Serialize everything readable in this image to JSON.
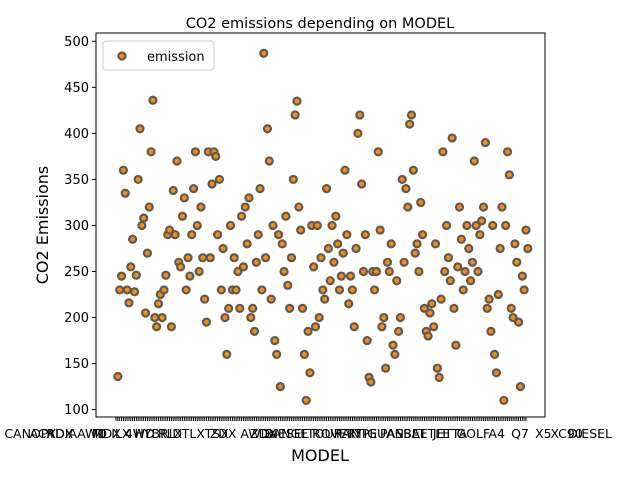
{
  "chart_data": {
    "type": "scatter",
    "title": "CO2 emissions depending on MODEL",
    "xlabel": "MODEL",
    "ylabel": "CO2 Emissions",
    "ylim": [
      92,
      509
    ],
    "yticks": [
      100,
      150,
      200,
      250,
      300,
      350,
      400,
      450,
      500
    ],
    "grid": false,
    "legend_position": "upper-left",
    "series": [
      {
        "name": "emission",
        "marker_face": "#ff8c00",
        "marker_edge": "#5a5a5a",
        "points": [
          [
            2,
            136
          ],
          [
            3,
            230
          ],
          [
            4,
            245
          ],
          [
            5,
            360
          ],
          [
            6,
            335
          ],
          [
            7,
            230
          ],
          [
            8,
            216
          ],
          [
            9,
            255
          ],
          [
            10,
            285
          ],
          [
            11,
            228
          ],
          [
            12,
            246
          ],
          [
            13,
            350
          ],
          [
            14,
            405
          ],
          [
            15,
            300
          ],
          [
            16,
            308
          ],
          [
            17,
            205
          ],
          [
            18,
            270
          ],
          [
            19,
            320
          ],
          [
            20,
            380
          ],
          [
            21,
            436
          ],
          [
            22,
            200
          ],
          [
            23,
            190
          ],
          [
            24,
            215
          ],
          [
            25,
            225
          ],
          [
            26,
            200
          ],
          [
            27,
            230
          ],
          [
            28,
            246
          ],
          [
            29,
            290
          ],
          [
            30,
            295
          ],
          [
            31,
            190
          ],
          [
            32,
            338
          ],
          [
            33,
            290
          ],
          [
            34,
            370
          ],
          [
            35,
            260
          ],
          [
            36,
            255
          ],
          [
            37,
            310
          ],
          [
            38,
            330
          ],
          [
            39,
            230
          ],
          [
            40,
            265
          ],
          [
            41,
            245
          ],
          [
            42,
            290
          ],
          [
            43,
            340
          ],
          [
            44,
            380
          ],
          [
            45,
            300
          ],
          [
            46,
            250
          ],
          [
            47,
            320
          ],
          [
            48,
            265
          ],
          [
            49,
            220
          ],
          [
            50,
            195
          ],
          [
            51,
            380
          ],
          [
            52,
            265
          ],
          [
            53,
            345
          ],
          [
            54,
            380
          ],
          [
            55,
            375
          ],
          [
            56,
            290
          ],
          [
            57,
            350
          ],
          [
            58,
            230
          ],
          [
            59,
            275
          ],
          [
            60,
            200
          ],
          [
            61,
            160
          ],
          [
            62,
            210
          ],
          [
            63,
            300
          ],
          [
            64,
            230
          ],
          [
            65,
            265
          ],
          [
            66,
            230
          ],
          [
            67,
            250
          ],
          [
            68,
            210
          ],
          [
            69,
            310
          ],
          [
            70,
            255
          ],
          [
            71,
            320
          ],
          [
            72,
            280
          ],
          [
            73,
            330
          ],
          [
            74,
            200
          ],
          [
            75,
            210
          ],
          [
            76,
            185
          ],
          [
            77,
            260
          ],
          [
            78,
            290
          ],
          [
            79,
            340
          ],
          [
            80,
            230
          ],
          [
            81,
            487
          ],
          [
            82,
            265
          ],
          [
            83,
            405
          ],
          [
            84,
            370
          ],
          [
            85,
            220
          ],
          [
            86,
            300
          ],
          [
            87,
            175
          ],
          [
            88,
            160
          ],
          [
            89,
            290
          ],
          [
            90,
            125
          ],
          [
            91,
            280
          ],
          [
            92,
            250
          ],
          [
            93,
            310
          ],
          [
            94,
            235
          ],
          [
            95,
            210
          ],
          [
            96,
            265
          ],
          [
            97,
            350
          ],
          [
            98,
            420
          ],
          [
            99,
            435
          ],
          [
            100,
            320
          ],
          [
            101,
            295
          ],
          [
            102,
            210
          ],
          [
            103,
            160
          ],
          [
            104,
            110
          ],
          [
            105,
            185
          ],
          [
            106,
            140
          ],
          [
            107,
            300
          ],
          [
            108,
            255
          ],
          [
            109,
            190
          ],
          [
            110,
            300
          ],
          [
            111,
            200
          ],
          [
            112,
            265
          ],
          [
            113,
            230
          ],
          [
            114,
            220
          ],
          [
            115,
            340
          ],
          [
            116,
            275
          ],
          [
            117,
            240
          ],
          [
            118,
            300
          ],
          [
            119,
            260
          ],
          [
            120,
            310
          ],
          [
            121,
            280
          ],
          [
            122,
            230
          ],
          [
            123,
            245
          ],
          [
            124,
            270
          ],
          [
            125,
            360
          ],
          [
            126,
            290
          ],
          [
            127,
            215
          ],
          [
            128,
            245
          ],
          [
            129,
            230
          ],
          [
            130,
            190
          ],
          [
            131,
            275
          ],
          [
            132,
            400
          ],
          [
            133,
            420
          ],
          [
            134,
            345
          ],
          [
            135,
            250
          ],
          [
            136,
            290
          ],
          [
            137,
            175
          ],
          [
            138,
            135
          ],
          [
            139,
            130
          ],
          [
            140,
            250
          ],
          [
            141,
            230
          ],
          [
            142,
            250
          ],
          [
            143,
            380
          ],
          [
            144,
            295
          ],
          [
            145,
            190
          ],
          [
            146,
            200
          ],
          [
            147,
            145
          ],
          [
            148,
            260
          ],
          [
            149,
            250
          ],
          [
            150,
            280
          ],
          [
            151,
            170
          ],
          [
            152,
            160
          ],
          [
            153,
            240
          ],
          [
            154,
            185
          ],
          [
            155,
            200
          ],
          [
            156,
            350
          ],
          [
            157,
            260
          ],
          [
            158,
            340
          ],
          [
            159,
            320
          ],
          [
            160,
            410
          ],
          [
            161,
            420
          ],
          [
            162,
            360
          ],
          [
            163,
            270
          ],
          [
            164,
            280
          ],
          [
            165,
            250
          ],
          [
            166,
            325
          ],
          [
            167,
            290
          ],
          [
            168,
            210
          ],
          [
            169,
            185
          ],
          [
            170,
            180
          ],
          [
            171,
            205
          ],
          [
            172,
            215
          ],
          [
            173,
            190
          ],
          [
            174,
            280
          ],
          [
            175,
            145
          ],
          [
            176,
            135
          ],
          [
            177,
            220
          ],
          [
            178,
            380
          ],
          [
            179,
            250
          ],
          [
            180,
            300
          ],
          [
            181,
            265
          ],
          [
            182,
            240
          ],
          [
            183,
            395
          ],
          [
            184,
            210
          ],
          [
            185,
            170
          ],
          [
            186,
            255
          ],
          [
            187,
            320
          ],
          [
            188,
            285
          ],
          [
            189,
            230
          ],
          [
            190,
            250
          ],
          [
            191,
            300
          ],
          [
            192,
            275
          ],
          [
            193,
            240
          ],
          [
            194,
            260
          ],
          [
            195,
            370
          ],
          [
            196,
            300
          ],
          [
            197,
            250
          ],
          [
            198,
            290
          ],
          [
            199,
            305
          ],
          [
            200,
            320
          ],
          [
            201,
            390
          ],
          [
            202,
            210
          ],
          [
            203,
            220
          ],
          [
            204,
            185
          ],
          [
            205,
            300
          ],
          [
            206,
            160
          ],
          [
            207,
            140
          ],
          [
            208,
            225
          ],
          [
            209,
            275
          ],
          [
            210,
            320
          ],
          [
            211,
            110
          ],
          [
            212,
            300
          ],
          [
            213,
            380
          ],
          [
            214,
            355
          ],
          [
            215,
            210
          ],
          [
            216,
            200
          ],
          [
            217,
            280
          ],
          [
            218,
            260
          ],
          [
            219,
            195
          ],
          [
            220,
            125
          ],
          [
            221,
            245
          ],
          [
            222,
            230
          ],
          [
            223,
            295
          ],
          [
            224,
            275
          ]
        ]
      }
    ],
    "x_tick_labels_visible": [
      "CANOPY",
      "ACADIA",
      "RDX AWD",
      "TL",
      "MDX 4WD",
      "ILX HYBRID",
      "RLX",
      "TLX",
      "TSX",
      "ZDX AWD",
      "ZDX",
      "DIESEL",
      "RANGE ROVER",
      "TOURAN",
      "F-TYPE",
      "TIGUAN",
      "PASSAT",
      "BEETLE",
      "JETTA",
      "GOLF",
      "A4",
      "Q7",
      "X5",
      "XC90",
      "DIESEL"
    ]
  }
}
